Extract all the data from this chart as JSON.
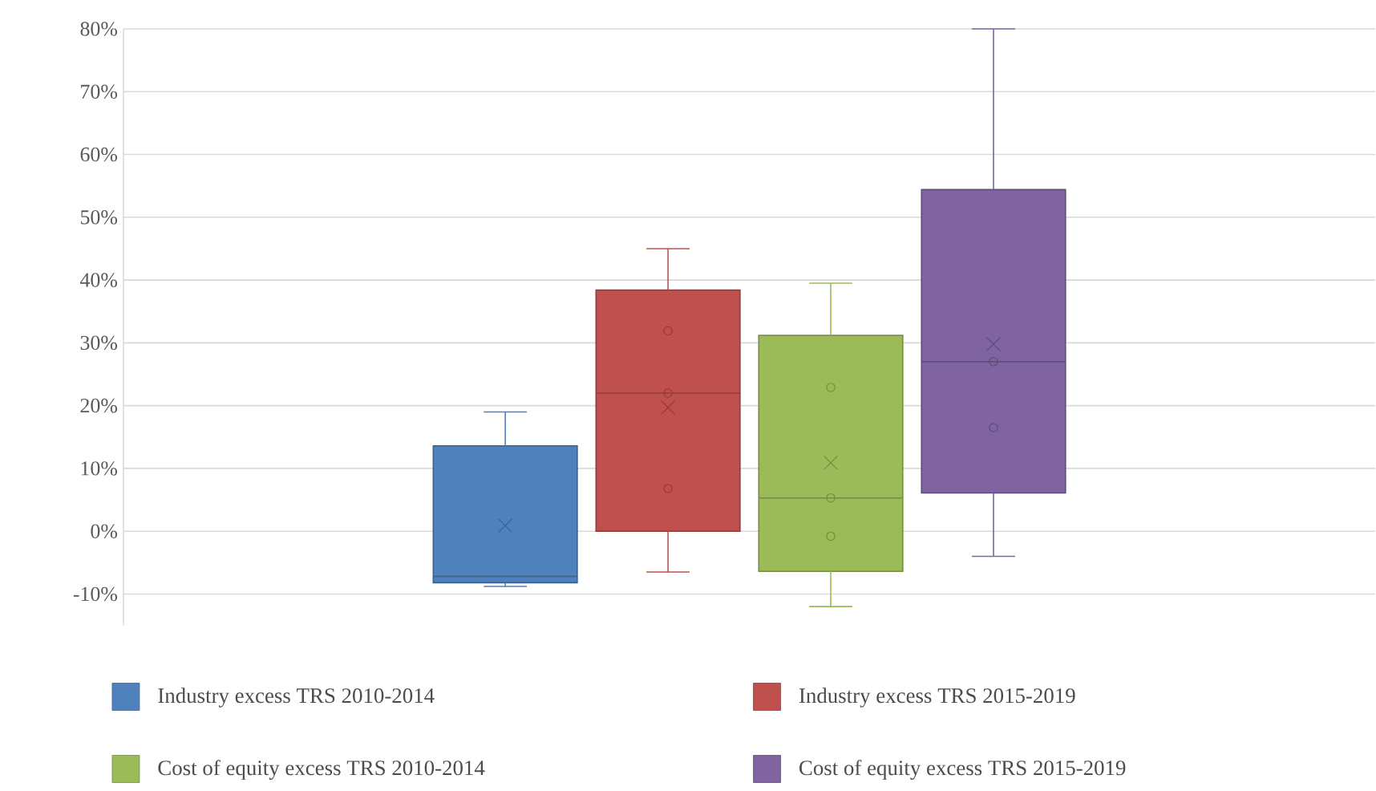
{
  "chart_data": {
    "type": "box",
    "categories": [
      null
    ],
    "ylim": [
      -15,
      80
    ],
    "yticks": [
      {
        "value": -10,
        "label": "-10%"
      },
      {
        "value": 0,
        "label": "0%"
      },
      {
        "value": 10,
        "label": "10%"
      },
      {
        "value": 20,
        "label": "20%"
      },
      {
        "value": 30,
        "label": "30%"
      },
      {
        "value": 40,
        "label": "40%"
      },
      {
        "value": 50,
        "label": "50%"
      },
      {
        "value": 60,
        "label": "60%"
      },
      {
        "value": 70,
        "label": "70%"
      },
      {
        "value": 80,
        "label": "80%"
      }
    ],
    "grid": "y",
    "legend": "bottom",
    "tick_labels": "y",
    "series": [
      {
        "name": "Industry excess TRS 2010-2014",
        "color": "#4f81bd",
        "boxes": [
          {
            "low": -8.8,
            "q1": -8.2,
            "median": -7.2,
            "q3": 13.6,
            "high": 19,
            "mean": 0.9
          }
        ]
      },
      {
        "name": "Industry excess TRS 2015-2019",
        "color": "#c0504d",
        "boxes": [
          {
            "low": -6.5,
            "q1": 0,
            "median": 22,
            "q3": 38.4,
            "high": 45,
            "mean": 19.7,
            "outliers": [
              31.9,
              22,
              6.8
            ]
          }
        ]
      },
      {
        "name": "Cost of equity excess TRS 2010-2014",
        "color": "#9bbb59",
        "boxes": [
          {
            "low": -12,
            "q1": -6.4,
            "median": 5.3,
            "q3": 31.2,
            "high": 39.5,
            "mean": 10.9,
            "outliers": [
              22.9,
              5.3,
              -0.8
            ]
          }
        ]
      },
      {
        "name": "Cost of equity excess TRS 2015-2019",
        "color": "#8064a2",
        "boxes": [
          {
            "low": -4,
            "q1": 6.1,
            "median": 27,
            "q3": 54.4,
            "high": 80,
            "mean": 29.8,
            "outliers": [
              27,
              16.5
            ]
          }
        ]
      }
    ]
  }
}
